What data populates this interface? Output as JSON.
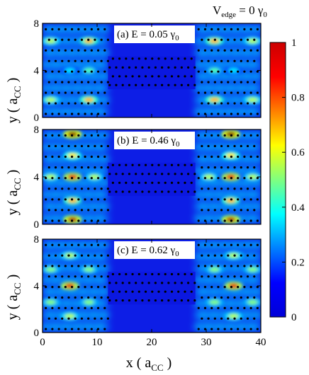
{
  "chart_data": {
    "type": "heatmap",
    "supertitle": {
      "main": "V",
      "sub": "edge",
      "rest": " = 0 γ",
      "sub2": "0"
    },
    "xlabel": {
      "main": "x ( a",
      "sub": "CC",
      "end": " )"
    },
    "ylabel": {
      "main": "y ( a",
      "sub": "CC",
      "end": " )"
    },
    "xlim": [
      0,
      40
    ],
    "ylim": [
      0,
      8
    ],
    "xticks": [
      "0",
      "10",
      "20",
      "30",
      "40"
    ],
    "yticks": [
      "0",
      "4",
      "8"
    ],
    "colorbar": {
      "range": [
        0,
        1
      ],
      "ticks": [
        "0",
        "0.2",
        "0.4",
        "0.6",
        "0.8",
        "1"
      ],
      "colormap": "jet"
    },
    "panels": [
      {
        "label": "(a) E = 0.05 γ",
        "label_sub": "0",
        "energy": 0.05
      },
      {
        "label": "(b) E = 0.46 γ",
        "label_sub": "0",
        "energy": 0.46
      },
      {
        "label": "(c) E = 0.62 γ",
        "label_sub": "0",
        "energy": 0.62
      }
    ],
    "geometry_units": {
      "left_lead_x": [
        0,
        12
      ],
      "right_lead_x": [
        28,
        40
      ],
      "central_ribbon_x": [
        12,
        28
      ],
      "central_ribbon_y": [
        2.4,
        5.2
      ]
    },
    "hotspots": [
      [
        {
          "x": 1.5,
          "y": 6.5,
          "v": 0.55
        },
        {
          "x": 1.5,
          "y": 1.5,
          "v": 0.55
        },
        {
          "x": 8.5,
          "y": 6.5,
          "v": 0.7
        },
        {
          "x": 8.5,
          "y": 1.5,
          "v": 0.7
        },
        {
          "x": 8.5,
          "y": 4.0,
          "v": 0.45
        },
        {
          "x": 5,
          "y": 4.0,
          "v": 0.35
        },
        {
          "x": 31.5,
          "y": 6.5,
          "v": 0.7
        },
        {
          "x": 31.5,
          "y": 1.5,
          "v": 0.7
        },
        {
          "x": 31.5,
          "y": 4.0,
          "v": 0.45
        },
        {
          "x": 38.5,
          "y": 6.5,
          "v": 0.55
        },
        {
          "x": 38.5,
          "y": 1.5,
          "v": 0.55
        },
        {
          "x": 35,
          "y": 4.0,
          "v": 0.35
        }
      ],
      [
        {
          "x": 5.5,
          "y": 7.6,
          "v": 1.0
        },
        {
          "x": 5.5,
          "y": 4.0,
          "v": 0.9
        },
        {
          "x": 5.5,
          "y": 0.4,
          "v": 0.95
        },
        {
          "x": 5.5,
          "y": 5.8,
          "v": 0.65
        },
        {
          "x": 5.5,
          "y": 2.0,
          "v": 0.7
        },
        {
          "x": 1.5,
          "y": 4.0,
          "v": 0.55
        },
        {
          "x": 9.5,
          "y": 4.0,
          "v": 0.55
        },
        {
          "x": 34.5,
          "y": 7.6,
          "v": 1.0
        },
        {
          "x": 34.5,
          "y": 4.0,
          "v": 0.9
        },
        {
          "x": 34.5,
          "y": 0.4,
          "v": 0.95
        },
        {
          "x": 34.5,
          "y": 5.8,
          "v": 0.65
        },
        {
          "x": 34.5,
          "y": 2.0,
          "v": 0.7
        },
        {
          "x": 30.5,
          "y": 4.0,
          "v": 0.55
        },
        {
          "x": 38.5,
          "y": 4.0,
          "v": 0.55
        }
      ],
      [
        {
          "x": 5,
          "y": 4.0,
          "v": 0.9
        },
        {
          "x": 5,
          "y": 6.6,
          "v": 0.55
        },
        {
          "x": 5,
          "y": 1.4,
          "v": 0.55
        },
        {
          "x": 1.5,
          "y": 2.6,
          "v": 0.5
        },
        {
          "x": 1.5,
          "y": 5.4,
          "v": 0.5
        },
        {
          "x": 8.5,
          "y": 2.6,
          "v": 0.5
        },
        {
          "x": 8.5,
          "y": 5.4,
          "v": 0.5
        },
        {
          "x": 35,
          "y": 4.0,
          "v": 0.9
        },
        {
          "x": 35,
          "y": 6.6,
          "v": 0.55
        },
        {
          "x": 35,
          "y": 1.4,
          "v": 0.55
        },
        {
          "x": 31.5,
          "y": 2.6,
          "v": 0.5
        },
        {
          "x": 31.5,
          "y": 5.4,
          "v": 0.5
        },
        {
          "x": 38.5,
          "y": 2.6,
          "v": 0.5
        },
        {
          "x": 38.5,
          "y": 5.4,
          "v": 0.5
        }
      ]
    ]
  }
}
